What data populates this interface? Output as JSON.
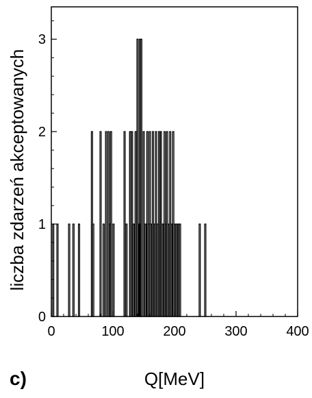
{
  "chart_data": {
    "type": "bar",
    "panel_label": "c)",
    "xlabel": "Q[MeV]",
    "ylabel": "liczba zdarzeń akceptowanych",
    "xlim": [
      0,
      400
    ],
    "ylim": [
      0,
      3.35
    ],
    "xticks": [
      0,
      100,
      200,
      300,
      400
    ],
    "yticks": [
      0,
      1,
      2,
      3
    ],
    "grid": false,
    "bin_width": 2,
    "x": [
      3,
      10,
      29,
      36,
      45,
      66,
      68,
      80,
      85,
      89,
      93,
      95,
      97,
      101,
      119,
      122,
      128,
      131,
      134,
      137,
      140,
      143,
      144,
      146,
      150,
      153,
      156,
      158,
      160,
      162,
      165,
      168,
      170,
      173,
      175,
      178,
      181,
      184,
      186,
      188,
      190,
      193,
      195,
      198,
      201,
      204,
      207,
      209,
      241,
      250
    ],
    "values": [
      1,
      1,
      1,
      1,
      1,
      2,
      1,
      2,
      1,
      2,
      2,
      1,
      2,
      1,
      2,
      1,
      2,
      2,
      1,
      2,
      3,
      1,
      3,
      3,
      2,
      1,
      2,
      1,
      2,
      1,
      2,
      1,
      2,
      1,
      2,
      2,
      1,
      2,
      1,
      2,
      1,
      2,
      1,
      2,
      1,
      1,
      1,
      1,
      1,
      1
    ]
  }
}
